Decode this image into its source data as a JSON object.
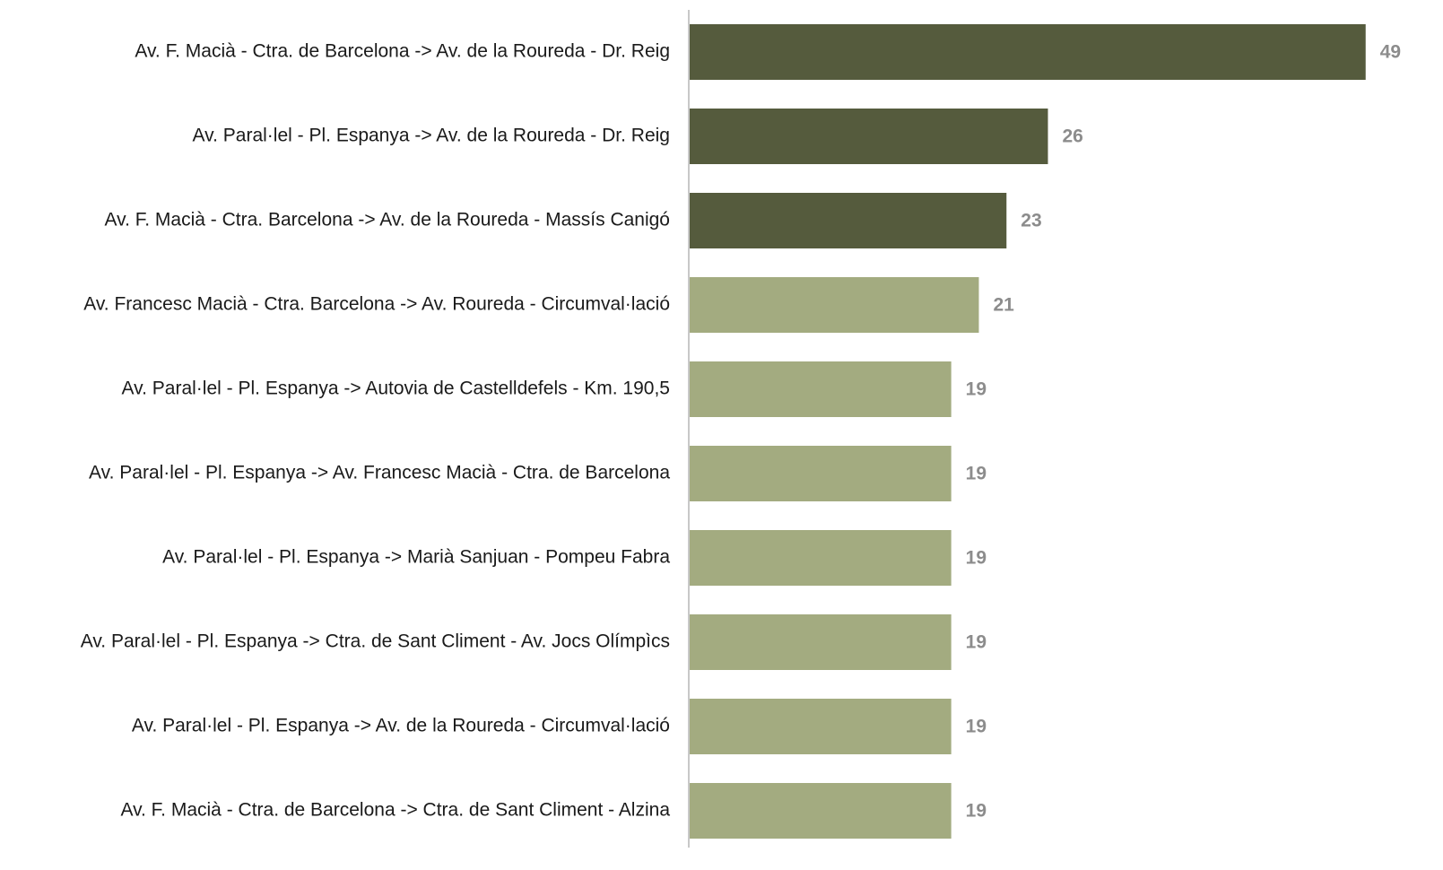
{
  "chart_data": {
    "type": "bar",
    "orientation": "horizontal",
    "categories": [
      "Av. F. Macià - Ctra. de Barcelona -> Av. de la Roureda - Dr. Reig",
      "Av. Paral·lel - Pl. Espanya -> Av. de la Roureda - Dr. Reig",
      "Av. F. Macià - Ctra. Barcelona -> Av. de la Roureda - Massís Canigó",
      "Av. Francesc Macià - Ctra. Barcelona -> Av. Roureda - Circumval·lació",
      "Av. Paral·lel - Pl. Espanya -> Autovia de Castelldefels - Km. 190,5",
      "Av. Paral·lel - Pl. Espanya -> Av. Francesc Macià - Ctra. de Barcelona",
      "Av. Paral·lel - Pl. Espanya -> Marià Sanjuan - Pompeu Fabra",
      "Av. Paral·lel - Pl. Espanya -> Ctra. de Sant Climent - Av. Jocs Olímpìcs",
      "Av. Paral·lel - Pl. Espanya -> Av. de la Roureda - Circumval·lació",
      "Av. F. Macià - Ctra. de Barcelona -> Ctra. de Sant Climent - Alzina"
    ],
    "values": [
      49,
      26,
      23,
      21,
      19,
      19,
      19,
      19,
      19,
      19
    ],
    "colors": [
      "#555b3d",
      "#555b3d",
      "#555b3d",
      "#a3ab80",
      "#a3ab80",
      "#a3ab80",
      "#a3ab80",
      "#a3ab80",
      "#a3ab80",
      "#a3ab80"
    ],
    "xlim": [
      0,
      54.6
    ]
  }
}
